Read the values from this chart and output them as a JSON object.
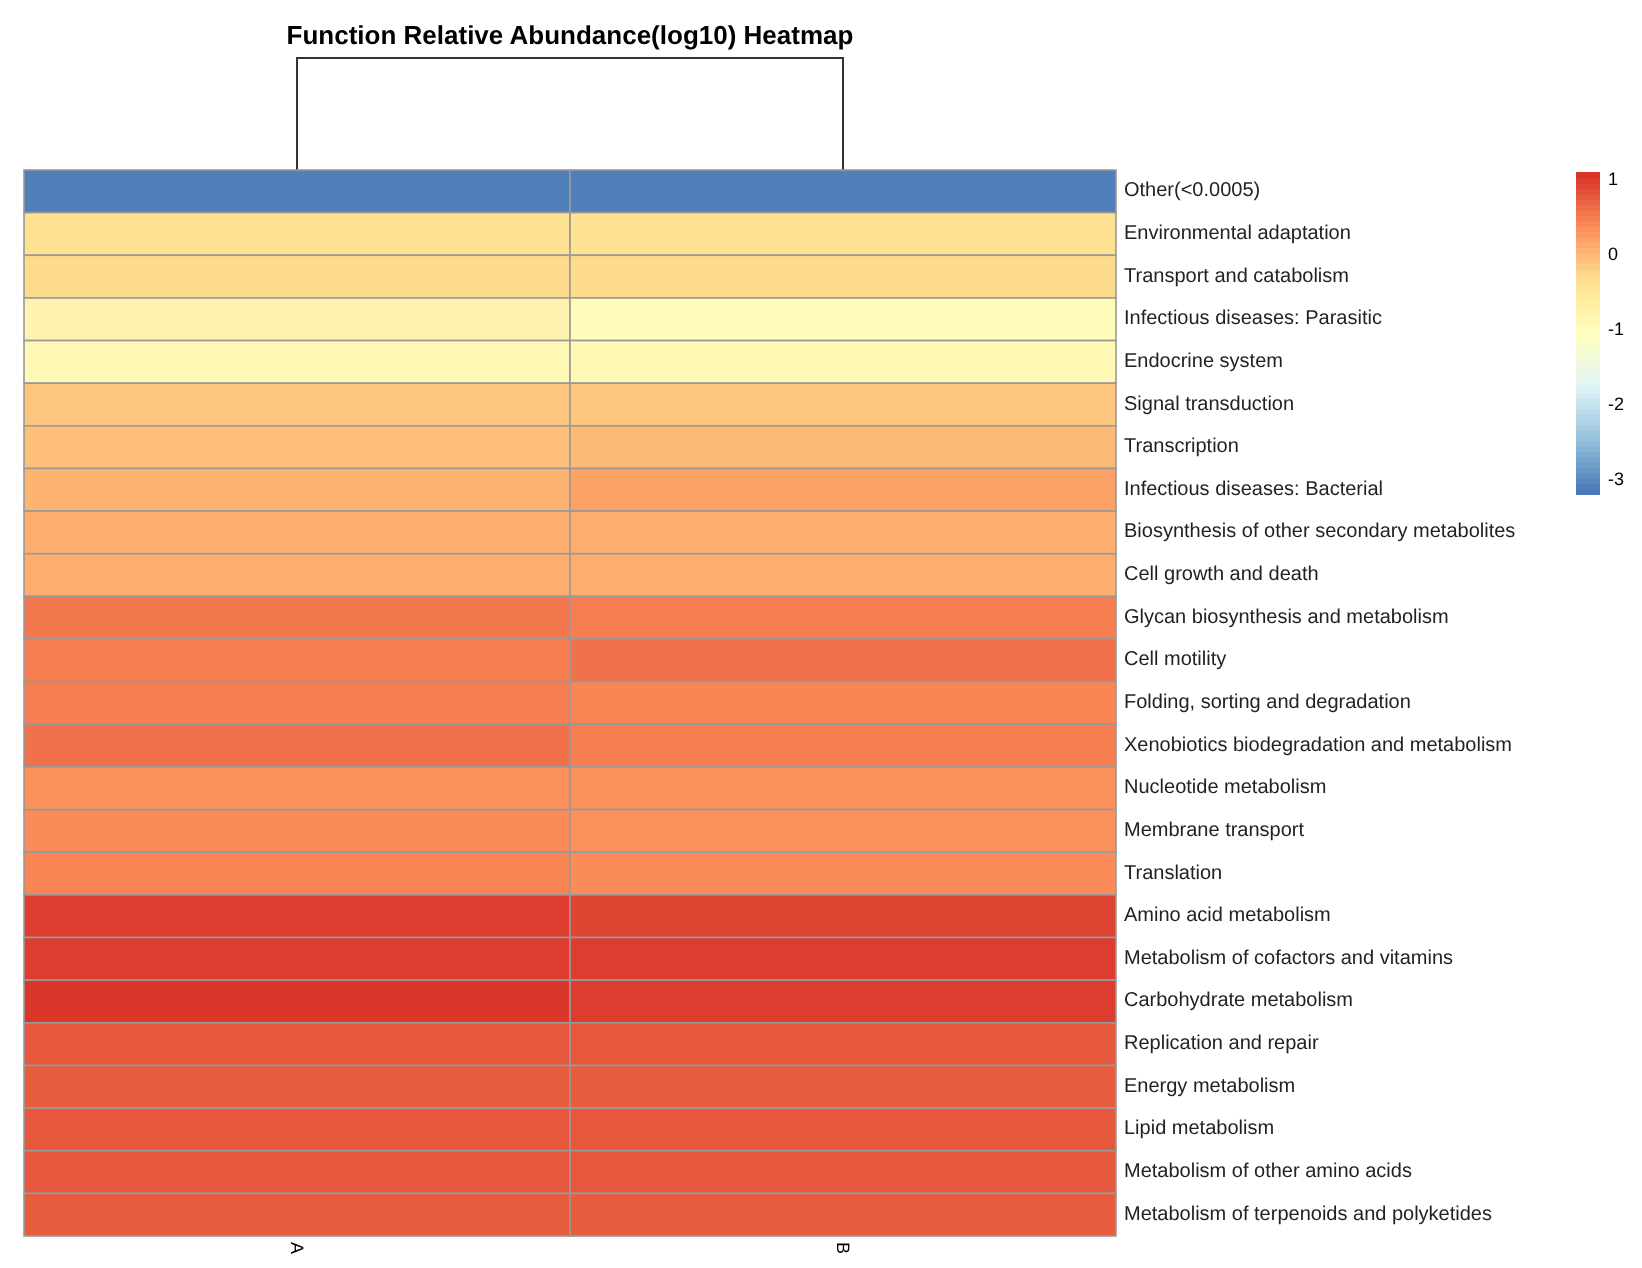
{
  "chart_data": {
    "type": "heatmap",
    "title": "Function Relative Abundance(log10) Heatmap",
    "categories": [
      "A",
      "B"
    ],
    "y_categories": [
      "Other(<0.0005)",
      "Environmental adaptation",
      "Transport and catabolism",
      "Infectious diseases: Parasitic",
      "Endocrine system",
      "Signal transduction",
      "Transcription",
      "Infectious diseases: Bacterial",
      "Biosynthesis of other secondary metabolites",
      "Cell growth and death",
      "Glycan biosynthesis and metabolism",
      "Cell motility",
      "Folding, sorting and degradation",
      "Xenobiotics biodegradation and metabolism",
      "Nucleotide metabolism",
      "Membrane transport",
      "Translation",
      "Amino acid metabolism",
      "Metabolism of cofactors and vitamins",
      "Carbohydrate metabolism",
      "Replication and repair",
      "Energy metabolism",
      "Lipid metabolism",
      "Metabolism of other amino acids",
      "Metabolism of terpenoids and polyketides"
    ],
    "cells": [
      [
        -3.1,
        -3.1
      ],
      [
        -0.35,
        -0.35
      ],
      [
        -0.3,
        -0.3
      ],
      [
        -0.8,
        -0.95
      ],
      [
        -0.9,
        -0.9
      ],
      [
        -0.1,
        -0.1
      ],
      [
        -0.05,
        0
      ],
      [
        0.05,
        0.2
      ],
      [
        0.1,
        0.1
      ],
      [
        0.1,
        0.1
      ],
      [
        0.55,
        0.5
      ],
      [
        0.5,
        0.6
      ],
      [
        0.5,
        0.45
      ],
      [
        0.6,
        0.5
      ],
      [
        0.35,
        0.35
      ],
      [
        0.4,
        0.35
      ],
      [
        0.45,
        0.4
      ],
      [
        1,
        0.95
      ],
      [
        1,
        1
      ],
      [
        1.05,
        1
      ],
      [
        0.8,
        0.8
      ],
      [
        0.75,
        0.75
      ],
      [
        0.8,
        0.8
      ],
      [
        0.8,
        0.8
      ],
      [
        0.75,
        0.75
      ]
    ],
    "clim": [
      -3.2,
      1.1
    ],
    "cticks": [
      1,
      0,
      -1,
      -2,
      -3
    ]
  }
}
